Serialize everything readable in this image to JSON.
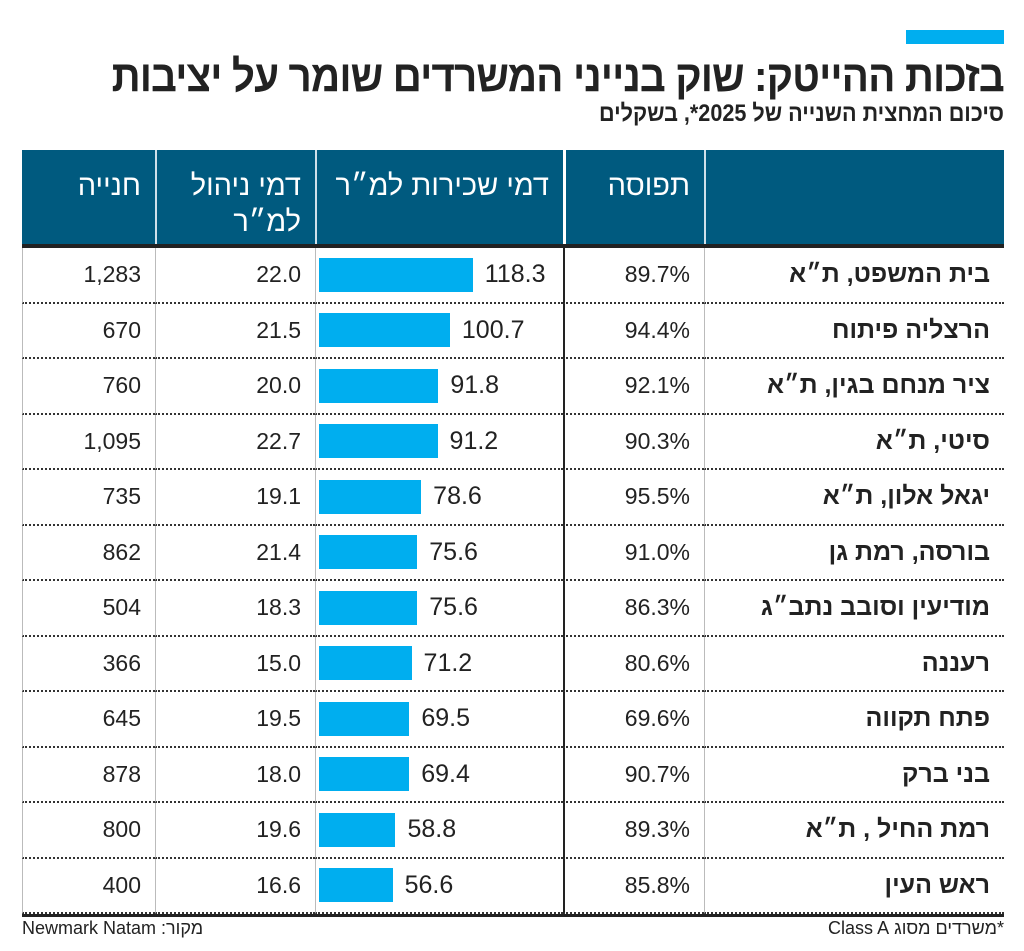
{
  "title": "בזכות ההייטק: שוק בנייני המשרדים שומר על יציבות",
  "subtitle": "סיכום המחצית השנייה של 2025*, בשקלים",
  "footnote": "*משרדים מסוג Class A",
  "source": "מקור: Newmark Natam",
  "colors": {
    "header": "#005a7f",
    "bar": "#00aeef",
    "accent": "#00aeef"
  },
  "chart_data": {
    "type": "table",
    "columns": [
      "",
      "תפוסה",
      "דמי שכירות למ״ר",
      "דמי ניהול למ״ר",
      "חנייה"
    ],
    "rows": [
      {
        "name": "בית המשפט, ת״א",
        "occupancy": "89.7%",
        "rent": 118.3,
        "mgmt": "22.0",
        "parking": "1,283"
      },
      {
        "name": "הרצליה פיתוח",
        "occupancy": "94.4%",
        "rent": 100.7,
        "mgmt": "21.5",
        "parking": "670"
      },
      {
        "name": "ציר מנחם בגין, ת״א",
        "occupancy": "92.1%",
        "rent": 91.8,
        "mgmt": "20.0",
        "parking": "760"
      },
      {
        "name": "סיטי, ת״א",
        "occupancy": "90.3%",
        "rent": 91.2,
        "mgmt": "22.7",
        "parking": "1,095"
      },
      {
        "name": "יגאל אלון, ת״א",
        "occupancy": "95.5%",
        "rent": 78.6,
        "mgmt": "19.1",
        "parking": "735"
      },
      {
        "name": "בורסה, רמת גן",
        "occupancy": "91.0%",
        "rent": 75.6,
        "mgmt": "21.4",
        "parking": "862"
      },
      {
        "name": "מודיעין וסובב נתב״ג",
        "occupancy": "86.3%",
        "rent": 75.6,
        "mgmt": "18.3",
        "parking": "504"
      },
      {
        "name": "רעננה",
        "occupancy": "80.6%",
        "rent": 71.2,
        "mgmt": "15.0",
        "parking": "366"
      },
      {
        "name": "פתח תקווה",
        "occupancy": "69.6%",
        "rent": 69.5,
        "mgmt": "19.5",
        "parking": "645"
      },
      {
        "name": "בני ברק",
        "occupancy": "90.7%",
        "rent": 69.4,
        "mgmt": "18.0",
        "parking": "878"
      },
      {
        "name": "רמת החיל , ת״א",
        "occupancy": "89.3%",
        "rent": 58.8,
        "mgmt": "19.6",
        "parking": "800"
      },
      {
        "name": "ראש העין",
        "occupancy": "85.8%",
        "rent": 56.6,
        "mgmt": "16.6",
        "parking": "400"
      }
    ]
  }
}
